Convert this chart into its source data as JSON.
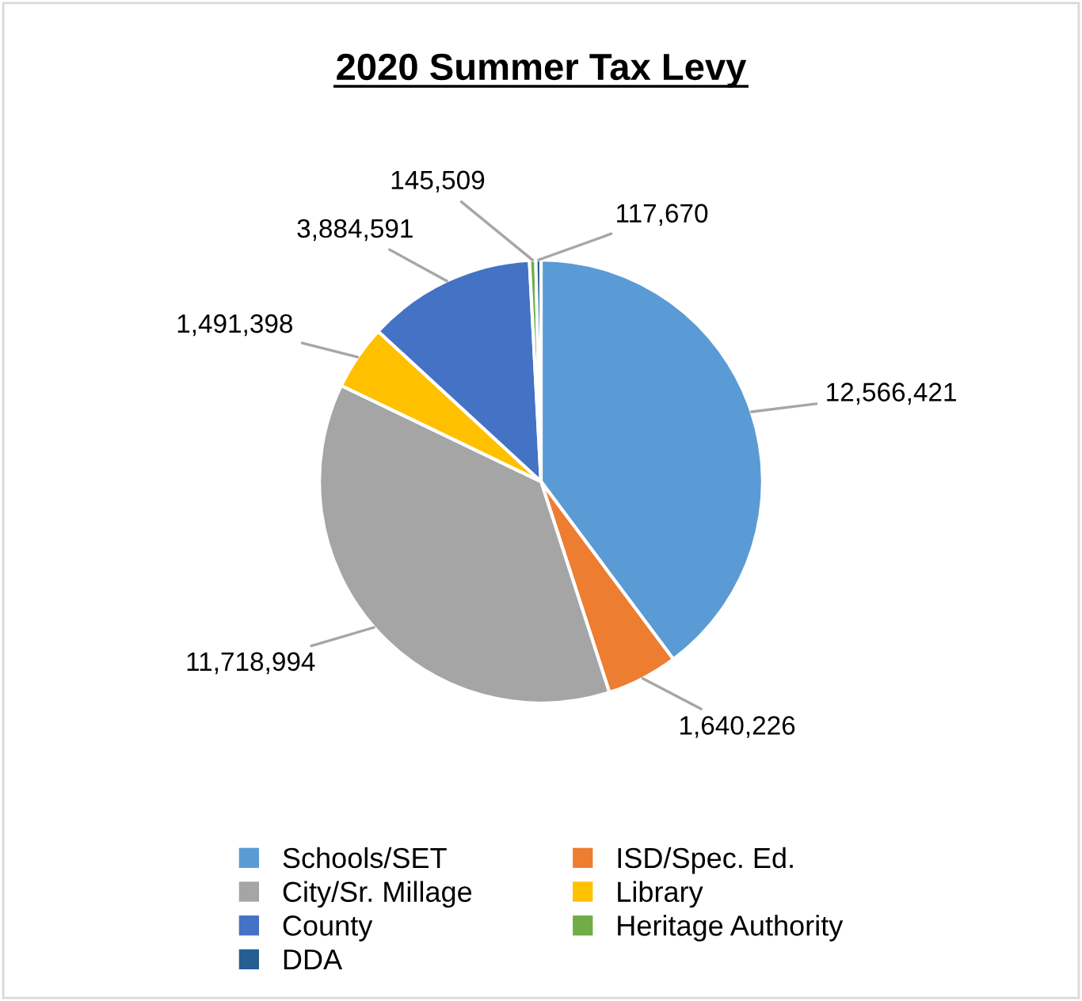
{
  "chart_data": {
    "type": "pie",
    "title": "2020 Summer Tax Levy",
    "categories": [
      "Schools/SET",
      "ISD/Spec. Ed.",
      "City/Sr. Millage",
      "Library",
      "County",
      "Heritage Authority",
      "DDA"
    ],
    "values": [
      12566421,
      1640226,
      11718994,
      1491398,
      3884591,
      145509,
      117670
    ],
    "colors": [
      "#5b9bd5",
      "#ed7d31",
      "#a5a5a5",
      "#ffc000",
      "#4472c4",
      "#70ad47",
      "#255e91"
    ],
    "value_labels": [
      "12,566,421",
      "1,640,226",
      "11,718,994",
      "1,491,398",
      "3,884,591",
      "145,509",
      "117,670"
    ],
    "legend": "bottom"
  }
}
